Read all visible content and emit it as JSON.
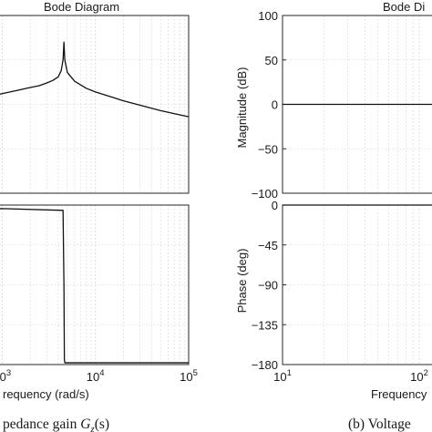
{
  "chart_data": [
    {
      "type": "line",
      "panel": "left",
      "title": "Bode Diagram",
      "xlabel": "requency  (rad/s)",
      "x_scale": "log",
      "xlim": [
        100,
        100000
      ],
      "x_ticks": [
        {
          "value": 1000,
          "base": "10",
          "exp": "3"
        },
        {
          "value": 10000,
          "base": "10",
          "exp": "4"
        },
        {
          "value": 100000,
          "base": "10",
          "exp": "5"
        }
      ],
      "grid": true,
      "caption": {
        "prefix": "pedance gain ",
        "symbol": "G",
        "subscript": "z",
        "suffix": "(s)"
      },
      "magnitude": {
        "ylim": [
          -100,
          100
        ],
        "y_ticks": [],
        "x": [
          100,
          200,
          400,
          700,
          1000,
          1500,
          2000,
          2500,
          3000,
          3500,
          4000,
          4300,
          4500,
          4600,
          4700,
          5000,
          6000,
          8000,
          10000,
          20000,
          50000,
          100000
        ],
        "y": [
          -6,
          -2,
          4,
          9,
          12,
          16,
          19,
          21,
          24,
          27,
          31,
          38,
          50,
          70,
          50,
          36,
          26,
          18,
          14,
          4,
          -7,
          -14
        ]
      },
      "phase": {
        "ylim": [
          -180,
          0
        ],
        "y_ticks": [],
        "x": [
          100,
          140,
          1000,
          4500,
          4600,
          4650,
          4700,
          10000,
          100000
        ],
        "y": [
          -20,
          -5,
          -4,
          -6,
          -90,
          -174,
          -178,
          -178,
          -178
        ]
      }
    },
    {
      "type": "line",
      "panel": "right",
      "title": "Bode Di",
      "xlabel": "Frequency",
      "x_scale": "log",
      "xlim": [
        10,
        1000
      ],
      "x_ticks": [
        {
          "value": 10,
          "base": "10",
          "exp": "1"
        },
        {
          "value": 100,
          "base": "10",
          "exp": "2"
        }
      ],
      "grid": true,
      "caption": {
        "text": "(b) Voltage"
      },
      "magnitude": {
        "ylabel": "Magnitude (dB)",
        "ylim": [
          -100,
          100
        ],
        "y_ticks": [
          "100",
          "50",
          "0",
          "-50",
          "-100"
        ],
        "x": [
          10,
          1000
        ],
        "y": [
          0,
          0
        ]
      },
      "phase": {
        "ylabel": "Phase (deg)",
        "ylim": [
          -180,
          0
        ],
        "y_ticks": [
          "0",
          "-45",
          "-90",
          "-135",
          "-180"
        ],
        "x": [
          10,
          1000
        ],
        "y": [
          0,
          0
        ]
      }
    }
  ]
}
